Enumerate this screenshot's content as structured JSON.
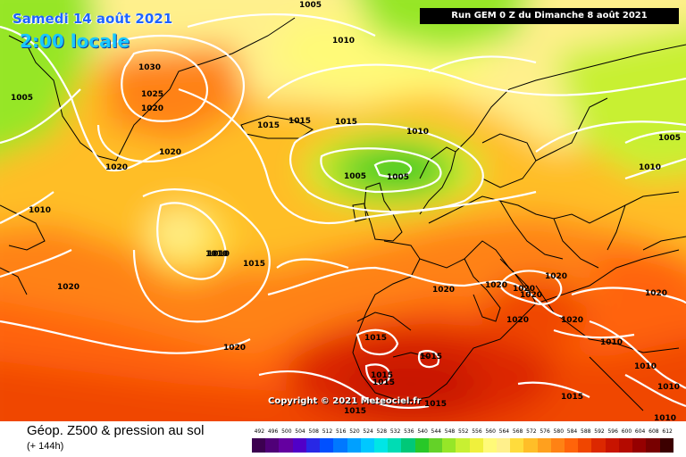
{
  "header": {
    "date": "Samedi 14 août 2021",
    "local_time": "2:00 locale",
    "run_info": "Run GEM 0 Z du Dimanche 8 août 2021"
  },
  "map": {
    "copyright": "Copyright © 2021 Meteociel.fr",
    "isobar_labels": [
      "1005",
      "1010",
      "1030",
      "1025",
      "1020",
      "1005",
      "1020",
      "1020",
      "1015",
      "1015",
      "1015",
      "1010",
      "1005",
      "1005",
      "1010",
      "1010",
      "1010",
      "1015",
      "1020",
      "1020",
      "1020",
      "1020",
      "1020",
      "1020",
      "1020",
      "1020",
      "1015",
      "1015",
      "1015",
      "1015",
      "1015",
      "1015",
      "1015",
      "1010",
      "1010",
      "1010",
      "1020",
      "1010",
      "1005",
      "1020"
    ]
  },
  "footer": {
    "title": "Géop. Z500 & pression au sol",
    "subtitle": "(+ 144h)"
  },
  "legend": {
    "ticks": [
      "492",
      "496",
      "500",
      "504",
      "508",
      "512",
      "516",
      "520",
      "524",
      "528",
      "532",
      "536",
      "540",
      "544",
      "548",
      "552",
      "556",
      "560",
      "564",
      "568",
      "572",
      "576",
      "580",
      "584",
      "588",
      "592",
      "596",
      "600",
      "604",
      "608",
      "612"
    ],
    "colors": [
      "#3c0050",
      "#500078",
      "#6400a0",
      "#5000c8",
      "#2828e6",
      "#0050ff",
      "#0078ff",
      "#00a0ff",
      "#00c8ff",
      "#00e6e6",
      "#00dcb4",
      "#00c878",
      "#28c828",
      "#64d228",
      "#96e628",
      "#c8f032",
      "#f0f03c",
      "#fffa78",
      "#fff08c",
      "#ffdc3c",
      "#ffbe28",
      "#ffa01e",
      "#ff8214",
      "#ff640a",
      "#f04600",
      "#dc2800",
      "#c81400",
      "#b40a00",
      "#960000",
      "#780000",
      "#3c0000"
    ]
  }
}
